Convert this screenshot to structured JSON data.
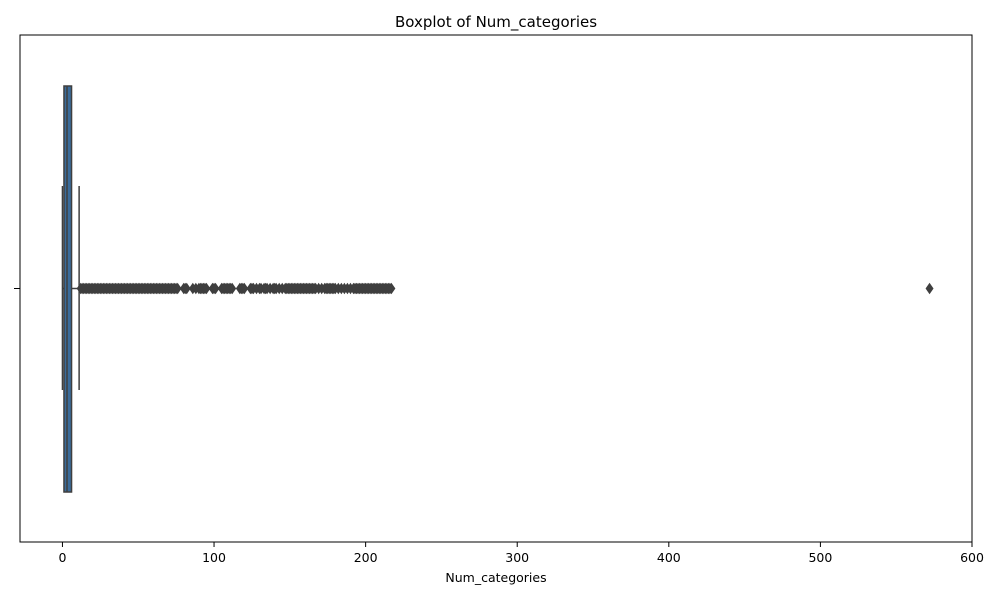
{
  "chart_data": {
    "type": "boxplot",
    "orientation": "horizontal",
    "title": "Boxplot of Num_categories",
    "xlabel": "Num_categories",
    "ylabel": "",
    "xlim": [
      -28,
      600
    ],
    "xticks": [
      0,
      100,
      200,
      300,
      400,
      500,
      600
    ],
    "xtick_labels": [
      "0",
      "100",
      "200",
      "300",
      "400",
      "500",
      "600"
    ],
    "grid": false,
    "colors": {
      "box_fill": "#3a6b9a",
      "box_edge": "#3f3f3f",
      "outlier": "#3f3f3f"
    },
    "box": {
      "min": 0,
      "q1": 1,
      "median": 3,
      "q3": 6,
      "max": 11
    },
    "outliers": [
      12,
      13,
      14,
      15,
      16,
      17,
      18,
      19,
      20,
      21,
      22,
      23,
      24,
      25,
      26,
      27,
      28,
      29,
      30,
      31,
      32,
      33,
      34,
      35,
      36,
      37,
      38,
      39,
      40,
      41,
      42,
      43,
      44,
      45,
      46,
      47,
      48,
      49,
      50,
      51,
      52,
      53,
      54,
      55,
      56,
      57,
      58,
      59,
      60,
      61,
      62,
      63,
      64,
      65,
      66,
      67,
      68,
      69,
      70,
      71,
      72,
      73,
      74,
      75,
      76,
      80,
      81,
      82,
      86,
      88,
      90,
      91,
      92,
      93,
      94,
      95,
      99,
      100,
      101,
      105,
      106,
      107,
      108,
      109,
      110,
      111,
      112,
      117,
      118,
      119,
      120,
      124,
      125,
      126,
      128,
      130,
      131,
      133,
      134,
      135,
      137,
      139,
      140,
      141,
      143,
      145,
      147,
      148,
      149,
      150,
      151,
      152,
      153,
      154,
      155,
      156,
      157,
      158,
      159,
      160,
      161,
      162,
      163,
      164,
      165,
      166,
      167,
      169,
      171,
      173,
      174,
      175,
      176,
      177,
      178,
      179,
      180,
      182,
      184,
      186,
      188,
      190,
      192,
      193,
      194,
      195,
      196,
      197,
      198,
      199,
      200,
      201,
      202,
      203,
      204,
      205,
      206,
      207,
      208,
      209,
      210,
      211,
      212,
      213,
      214,
      215,
      216,
      217,
      572
    ]
  }
}
